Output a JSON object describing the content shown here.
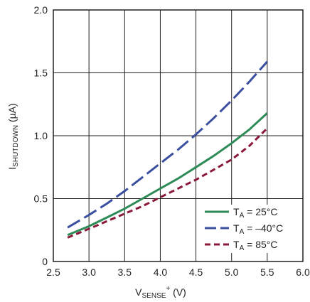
{
  "chart_data": {
    "type": "line",
    "xlabel": {
      "main": "V",
      "sub": "SENSE",
      "sup": "+",
      "unit": " (V)"
    },
    "ylabel": {
      "main": "I",
      "sub": "SHUTDOWN",
      "unit": " (µA)"
    },
    "xlim": [
      2.5,
      6.0
    ],
    "ylim": [
      0,
      2.0
    ],
    "x_ticks": [
      2.5,
      3.0,
      3.5,
      4.0,
      4.5,
      5.0,
      5.5,
      6.0
    ],
    "x_tick_labels": [
      "2.5",
      "3.0",
      "3.5",
      "4.0",
      "4.5",
      "5.0",
      "5.5",
      "6.0"
    ],
    "y_ticks": [
      0,
      0.5,
      1.0,
      1.5,
      2.0
    ],
    "y_tick_labels": [
      "0",
      "0.5",
      "1.0",
      "1.5",
      "2.0"
    ],
    "grid": true,
    "legend_position": "bottom-right",
    "series": [
      {
        "name": "T_A = 25°C",
        "label_parts": {
          "main": "T",
          "sub": "A",
          "rest": " = 25°C"
        },
        "color": "#2e8b57",
        "dash": "solid",
        "x": [
          2.7,
          3.0,
          3.25,
          3.5,
          3.75,
          4.0,
          4.25,
          4.5,
          4.75,
          5.0,
          5.25,
          5.5
        ],
        "y": [
          0.21,
          0.28,
          0.35,
          0.42,
          0.5,
          0.58,
          0.66,
          0.75,
          0.84,
          0.94,
          1.05,
          1.18
        ]
      },
      {
        "name": "T_A = –40°C",
        "label_parts": {
          "main": "T",
          "sub": "A",
          "rest": " = –40°C"
        },
        "color": "#3b4fa0",
        "dash": "long",
        "x": [
          2.7,
          3.0,
          3.25,
          3.5,
          3.75,
          4.0,
          4.25,
          4.5,
          4.75,
          5.0,
          5.25,
          5.5
        ],
        "y": [
          0.27,
          0.37,
          0.46,
          0.56,
          0.67,
          0.78,
          0.89,
          1.01,
          1.14,
          1.28,
          1.43,
          1.59
        ]
      },
      {
        "name": "T_A = 85°C",
        "label_parts": {
          "main": "T",
          "sub": "A",
          "rest": " = 85°C"
        },
        "color": "#8b1a3a",
        "dash": "short",
        "x": [
          2.7,
          3.0,
          3.25,
          3.5,
          3.75,
          4.0,
          4.25,
          4.5,
          4.75,
          5.0,
          5.25,
          5.5
        ],
        "y": [
          0.19,
          0.26,
          0.32,
          0.38,
          0.44,
          0.51,
          0.58,
          0.65,
          0.73,
          0.81,
          0.92,
          1.06
        ]
      }
    ]
  }
}
